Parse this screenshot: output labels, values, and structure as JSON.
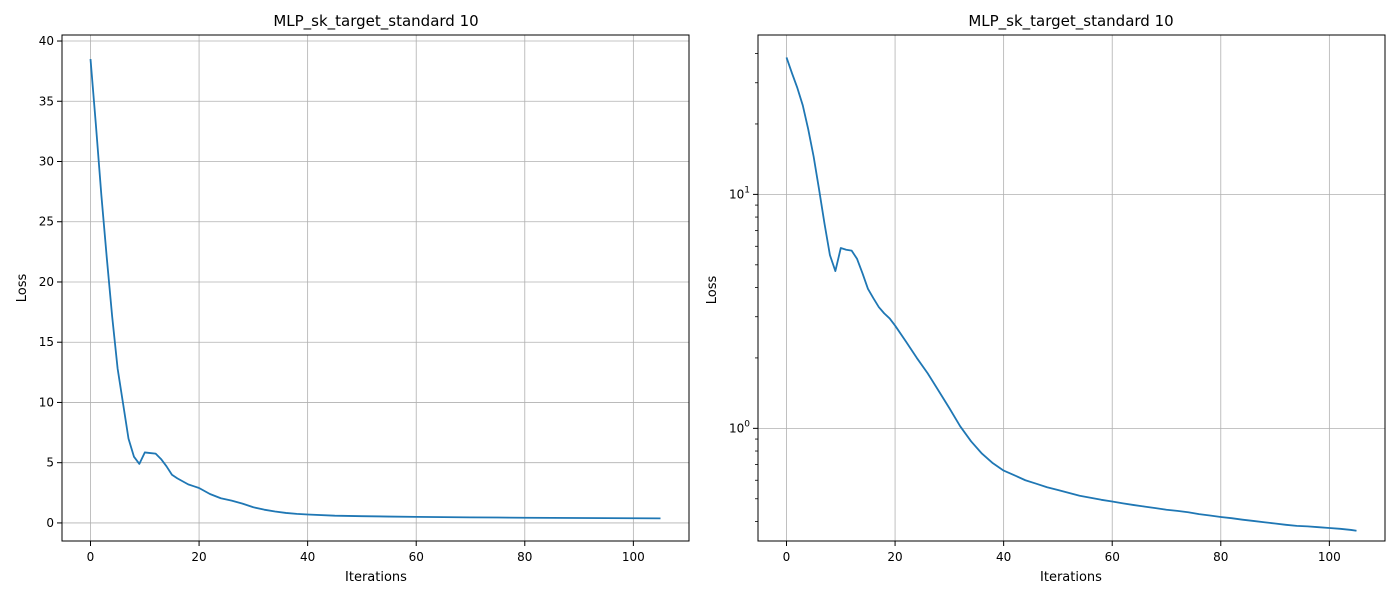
{
  "chart_data": [
    {
      "type": "line",
      "title": "MLP_sk_target_standard 10",
      "xlabel": "Iterations",
      "ylabel": "Loss",
      "yscale": "linear",
      "grid": true,
      "xlim": [
        -5.25,
        110.25
      ],
      "ylim": [
        -1.5,
        40.5
      ],
      "xticks": [
        0,
        20,
        40,
        60,
        80,
        100
      ],
      "yticks": [
        0,
        5,
        10,
        15,
        20,
        25,
        30,
        35,
        40
      ],
      "xtick_labels": [
        "0",
        "20",
        "40",
        "60",
        "80",
        "100"
      ],
      "ytick_labels": [
        "0",
        "5",
        "10",
        "15",
        "20",
        "25",
        "30",
        "35",
        "40"
      ],
      "line_color": "#1f77b4",
      "series": [
        {
          "x": [
            0,
            1,
            2,
            3,
            4,
            5,
            6,
            7,
            8,
            9,
            10,
            11,
            12,
            13,
            14,
            15,
            16,
            17,
            18,
            19,
            20,
            22,
            24,
            26,
            28,
            30,
            32,
            34,
            36,
            38,
            40,
            45,
            50,
            55,
            60,
            65,
            70,
            75,
            80,
            85,
            90,
            95,
            100,
            105
          ],
          "values": [
            38.5,
            33.0,
            27.2,
            22.0,
            17.1,
            12.8,
            9.9,
            7.0,
            5.5,
            4.9,
            5.85,
            5.8,
            5.75,
            5.3,
            4.7,
            4.0,
            3.7,
            3.45,
            3.2,
            3.05,
            2.9,
            2.4,
            2.05,
            1.85,
            1.6,
            1.3,
            1.1,
            0.95,
            0.83,
            0.75,
            0.7,
            0.6,
            0.56,
            0.53,
            0.5,
            0.48,
            0.46,
            0.45,
            0.43,
            0.42,
            0.41,
            0.4,
            0.39,
            0.38
          ]
        }
      ]
    },
    {
      "type": "line",
      "title": "MLP_sk_target_standard 10",
      "xlabel": "Iterations",
      "ylabel": "Loss",
      "yscale": "log",
      "grid": true,
      "xlim": [
        -5.25,
        110.25
      ],
      "ylim": [
        0.33,
        48
      ],
      "xticks": [
        0,
        20,
        40,
        60,
        80,
        100
      ],
      "yticks": [
        1,
        10
      ],
      "xtick_labels": [
        "0",
        "20",
        "40",
        "60",
        "80",
        "100"
      ],
      "ytick_labels": [
        "10^0",
        "10^1"
      ],
      "line_color": "#1f77b4",
      "series": [
        {
          "x": [
            0,
            1,
            2,
            3,
            4,
            5,
            6,
            7,
            8,
            9,
            10,
            11,
            12,
            13,
            14,
            15,
            16,
            17,
            18,
            19,
            20,
            22,
            24,
            26,
            28,
            30,
            32,
            34,
            36,
            38,
            40,
            42,
            44,
            46,
            48,
            50,
            52,
            54,
            56,
            58,
            60,
            62,
            64,
            66,
            68,
            70,
            72,
            74,
            76,
            78,
            80,
            82,
            84,
            86,
            88,
            90,
            92,
            94,
            96,
            98,
            100,
            102,
            104,
            105
          ],
          "values": [
            38.5,
            33.0,
            28.5,
            24.0,
            19.0,
            14.5,
            10.5,
            7.5,
            5.5,
            4.7,
            5.9,
            5.8,
            5.75,
            5.3,
            4.6,
            3.95,
            3.6,
            3.3,
            3.1,
            2.95,
            2.75,
            2.35,
            2.0,
            1.72,
            1.45,
            1.22,
            1.02,
            0.88,
            0.78,
            0.71,
            0.66,
            0.63,
            0.6,
            0.58,
            0.56,
            0.545,
            0.53,
            0.515,
            0.505,
            0.495,
            0.487,
            0.478,
            0.47,
            0.463,
            0.456,
            0.449,
            0.444,
            0.438,
            0.43,
            0.424,
            0.418,
            0.413,
            0.407,
            0.402,
            0.397,
            0.392,
            0.387,
            0.383,
            0.381,
            0.378,
            0.375,
            0.372,
            0.368,
            0.365
          ]
        }
      ]
    }
  ]
}
